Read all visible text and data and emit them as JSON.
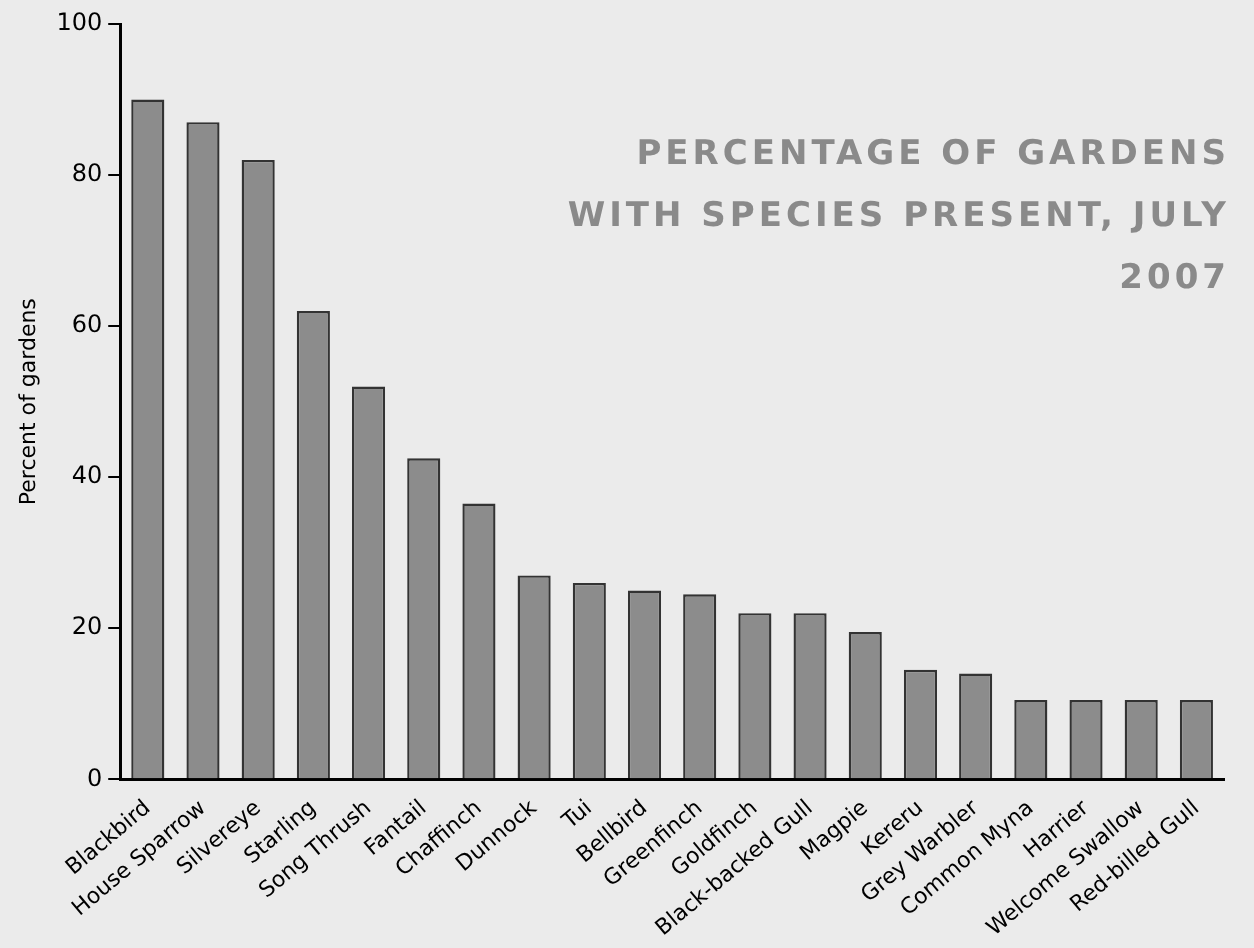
{
  "chart_data": {
    "type": "bar",
    "title": "PERCENTAGE OF GARDENS WITH SPECIES PRESENT, JULY 2007",
    "ylabel": "Percent of gardens",
    "categories": [
      "Blackbird",
      "House Sparrow",
      "Silvereye",
      "Starling",
      "Song Thrush",
      "Fantail",
      "Chaffinch",
      "Dunnock",
      "Tui",
      "Bellbird",
      "Greenfinch",
      "Goldfinch",
      "Black-backed Gull",
      "Magpie",
      "Kereru",
      "Grey Warbler",
      "Common Myna",
      "Harrier",
      "Welcome Swallow",
      "Red-billed Gull"
    ],
    "values": [
      90,
      87,
      82,
      62,
      52,
      42.5,
      36.5,
      27,
      26,
      25,
      24.5,
      22,
      22,
      19.5,
      14.5,
      14,
      10.5,
      10.5,
      10.5,
      10.5
    ],
    "color": "#8c8c8c",
    "ylim": [
      0,
      100
    ],
    "yticks": [
      0,
      20,
      40,
      60,
      80,
      100
    ],
    "grid": false,
    "legend": false
  }
}
